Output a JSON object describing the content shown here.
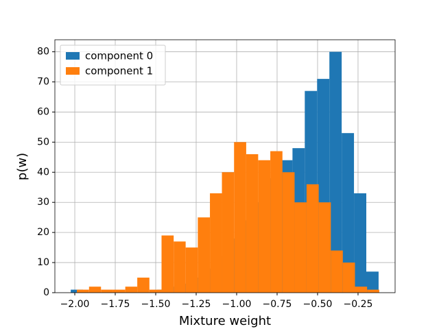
{
  "chart_data": {
    "type": "histogram",
    "xlabel": "Mixture weight",
    "ylabel": "p(w)",
    "xlim": [
      -2.123,
      -0.021
    ],
    "ylim": [
      0,
      84
    ],
    "xticks": [
      {
        "value": -2.0,
        "label": "−2.00"
      },
      {
        "value": -1.75,
        "label": "−1.75"
      },
      {
        "value": -1.5,
        "label": "−1.50"
      },
      {
        "value": -1.25,
        "label": "−1.25"
      },
      {
        "value": -1.0,
        "label": "−1.00"
      },
      {
        "value": -0.75,
        "label": "−0.75"
      },
      {
        "value": -0.5,
        "label": "−0.50"
      },
      {
        "value": -0.25,
        "label": "−0.25"
      }
    ],
    "yticks": [
      0,
      10,
      20,
      30,
      40,
      50,
      60,
      70,
      80
    ],
    "grid": true,
    "legend": "upper left",
    "series": [
      {
        "name": "component 0",
        "color": "#1f77b4",
        "bins": [
          -2.025,
          -1.949,
          -1.873,
          -1.797,
          -1.721,
          -1.645,
          -1.568,
          -1.492,
          -1.416,
          -1.34,
          -1.264,
          -1.188,
          -1.112,
          -1.036,
          -0.96,
          -0.884,
          -0.807,
          -0.731,
          -0.655,
          -0.579,
          -0.503,
          -0.427,
          -0.351,
          -0.275,
          -0.199,
          -0.123
        ],
        "values": [
          1,
          0,
          0,
          0,
          0,
          0,
          0,
          1,
          2,
          3,
          5,
          8,
          12,
          18,
          24,
          30,
          38,
          44,
          48,
          67,
          71,
          80,
          53,
          33,
          7
        ]
      },
      {
        "name": "component 1",
        "color": "#ff7f0e",
        "bins": [
          -1.987,
          -1.912,
          -1.838,
          -1.763,
          -1.688,
          -1.614,
          -1.539,
          -1.464,
          -1.389,
          -1.315,
          -1.24,
          -1.165,
          -1.091,
          -1.016,
          -0.941,
          -0.867,
          -0.792,
          -0.717,
          -0.642,
          -0.568,
          -0.493,
          -0.418,
          -0.344,
          -0.269,
          -0.194,
          -0.119
        ],
        "values": [
          1,
          2,
          1,
          1,
          2,
          5,
          1,
          19,
          17,
          15,
          25,
          33,
          40,
          50,
          46,
          44,
          47,
          40,
          30,
          36,
          30,
          14,
          10,
          2,
          1
        ]
      }
    ]
  }
}
